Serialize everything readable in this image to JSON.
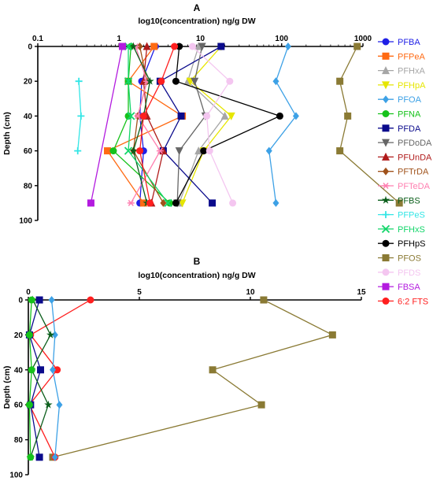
{
  "chart_data": [
    {
      "panel": "A",
      "type": "line",
      "title": "log10(concentration) ng/g  DW",
      "ylabel": "Depth (cm)",
      "x_scale": "log",
      "xlim": [
        0.1,
        1000
      ],
      "ylim": [
        100,
        0
      ],
      "x_ticks": [
        "0.1",
        "1",
        "10",
        "100",
        "1000"
      ],
      "y_ticks": [
        "0",
        "20",
        "40",
        "60",
        "80",
        "100"
      ],
      "depths": [
        0,
        20,
        40,
        60,
        90
      ],
      "series": [
        {
          "name": "PFBA",
          "color": "#1f1fe6",
          "marker": "circle",
          "x": [
            2.8,
            1.9,
            1.8,
            2.0,
            1.8
          ]
        },
        {
          "name": "PFPeA",
          "color": "#ff6a13",
          "marker": "square",
          "x": [
            2.7,
            1.3,
            6.0,
            0.72,
            2.0
          ]
        },
        {
          "name": "PFHxA",
          "color": "#a6a6a6",
          "marker": "triangle",
          "x": [
            9.5,
            7.0,
            20.0,
            9.5,
            5.5
          ]
        },
        {
          "name": "PFHpA",
          "color": "#e6e600",
          "marker": "tri-down",
          "x": [
            18.0,
            7.5,
            24.0,
            11.0,
            6.0
          ]
        },
        {
          "name": "PFOA",
          "color": "#3da1e6",
          "marker": "diamond",
          "x": [
            120,
            85,
            150,
            70,
            85
          ]
        },
        {
          "name": "PFNA",
          "color": "#16c21b",
          "marker": "circle",
          "x": [
            1.4,
            1.3,
            1.3,
            0.85,
            4.2
          ]
        },
        {
          "name": "PFDA",
          "color": "#0b0b8c",
          "marker": "square",
          "x": [
            18.0,
            3.2,
            5.8,
            3.5,
            14.0
          ]
        },
        {
          "name": "PFDoDA",
          "color": "#666666",
          "marker": "tri-down",
          "x": [
            10.5,
            8.5,
            11.5,
            5.5,
            5.2
          ]
        },
        {
          "name": "PFUnDA",
          "color": "#b01b1b",
          "marker": "triangle",
          "x": [
            2.2,
            2.0,
            2.2,
            3.5,
            2.5
          ]
        },
        {
          "name": "PFTrDA",
          "color": "#a0521b",
          "marker": "diamond",
          "x": [
            1.8,
            2.2,
            1.7,
            1.5,
            3.5
          ]
        },
        {
          "name": "PFTeDA",
          "color": "#ff7fb0",
          "marker": "asterisk",
          "x": [
            1.6,
            2.2,
            1.7,
            3.2,
            1.4
          ]
        },
        {
          "name": "PFBS",
          "color": "#0b5e1b",
          "marker": "star",
          "x": [
            1.5,
            2.4,
            2.0,
            1.5,
            2.2
          ]
        },
        {
          "name": "PFPeS",
          "color": "#33e6e6",
          "marker": "plus",
          "x": [
            null,
            0.32,
            0.34,
            0.31,
            null
          ]
        },
        {
          "name": "PFHxS",
          "color": "#13d66a",
          "marker": "x",
          "x": [
            1.3,
            1.3,
            1.4,
            1.3,
            4.0
          ]
        },
        {
          "name": "PFHpS",
          "color": "#000000",
          "marker": "circle",
          "x": [
            5.5,
            5.0,
            95,
            11.0,
            5.0
          ]
        },
        {
          "name": "PFOS",
          "color": "#8a7a34",
          "marker": "square",
          "x": [
            850,
            520,
            650,
            520,
            2800
          ]
        },
        {
          "name": "PFDS",
          "color": "#f4c6f0",
          "marker": "circle",
          "x": [
            8.0,
            23,
            12.0,
            13.0,
            25.0
          ]
        },
        {
          "name": "FBSA",
          "color": "#b31bdf",
          "marker": "square",
          "x": [
            1.1,
            null,
            null,
            null,
            0.45
          ]
        },
        {
          "name": "6:2 FTS",
          "color": "#ff1f1f",
          "marker": "circle",
          "x": [
            4.8,
            3.3,
            2.0,
            1.8,
            2.4
          ]
        }
      ]
    },
    {
      "panel": "B",
      "type": "line",
      "title": "log10(concentration) ng/g  DW",
      "ylabel": "Depth (cm)",
      "x_scale": "linear",
      "xlim": [
        0,
        15
      ],
      "ylim": [
        100,
        0
      ],
      "x_ticks": [
        "0",
        "5",
        "10",
        "15"
      ],
      "y_ticks": [
        "0",
        "20",
        "40",
        "60",
        "80",
        "100"
      ],
      "depths": [
        0,
        20,
        40,
        60,
        90
      ],
      "series": [
        {
          "name": "PFOS",
          "color": "#8a7a34",
          "marker": "square",
          "x": [
            10.6,
            13.7,
            8.3,
            10.5,
            1.1
          ]
        },
        {
          "name": "6:2 FTS",
          "color": "#ff1f1f",
          "marker": "circle",
          "x": [
            2.8,
            0.1,
            1.3,
            0.05,
            1.2
          ]
        },
        {
          "name": "PFOA",
          "color": "#3da1e6",
          "marker": "diamond",
          "x": [
            1.05,
            1.2,
            1.1,
            1.4,
            1.2
          ]
        },
        {
          "name": "PFDA",
          "color": "#0b0b8c",
          "marker": "square",
          "x": [
            0.5,
            0.05,
            0.55,
            0.1,
            0.5
          ]
        },
        {
          "name": "PFBS",
          "color": "#0b5e1b",
          "marker": "star",
          "x": [
            0.2,
            1.0,
            0.15,
            0.9,
            0.1
          ]
        },
        {
          "name": "PFNA",
          "color": "#16c21b",
          "marker": "circle",
          "x": [
            0.15,
            0.05,
            0.15,
            0.05,
            0.1
          ]
        }
      ]
    }
  ],
  "panel_labels": {
    "a": "A",
    "b": "B"
  }
}
